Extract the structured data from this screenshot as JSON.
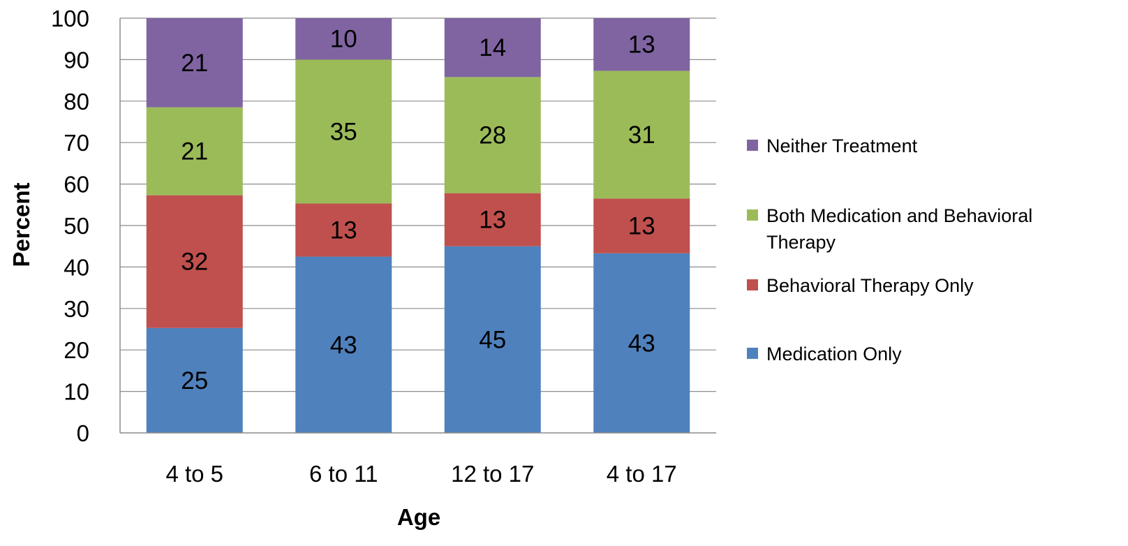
{
  "chart_data": {
    "type": "bar",
    "stacked": true,
    "categories": [
      "4 to 5",
      "6 to 11",
      "12 to 17",
      "4 to 17"
    ],
    "series": [
      {
        "name": "Medication Only",
        "color": "#4f81bd",
        "values": [
          25,
          43,
          45,
          43
        ]
      },
      {
        "name": "Behavioral Therapy Only",
        "color": "#c0504d",
        "values": [
          32,
          13,
          13,
          13
        ]
      },
      {
        "name": "Both Medication and Behavioral Therapy",
        "color": "#9bbb59",
        "values": [
          21,
          35,
          28,
          31
        ]
      },
      {
        "name": "Neither Treatment",
        "color": "#8064a2",
        "values": [
          21,
          10,
          14,
          13
        ]
      }
    ],
    "bar_tops": [
      [
        25.3,
        57.3,
        78.5,
        100
      ],
      [
        42.5,
        55.3,
        90.0,
        100
      ],
      [
        45.0,
        57.8,
        85.8,
        100
      ],
      [
        43.3,
        56.5,
        87.3,
        100
      ]
    ],
    "xlabel": "Age",
    "ylabel": "Percent",
    "ylim": [
      0,
      100
    ],
    "yticks": [
      "0",
      "10",
      "20",
      "30",
      "40",
      "50",
      "60",
      "70",
      "80",
      "90",
      "100"
    ],
    "grid": true,
    "legend_position": "right",
    "legend_order": [
      "Neither Treatment",
      "Both Medication and Behavioral Therapy",
      "Behavioral Therapy Only",
      "Medication Only"
    ]
  }
}
